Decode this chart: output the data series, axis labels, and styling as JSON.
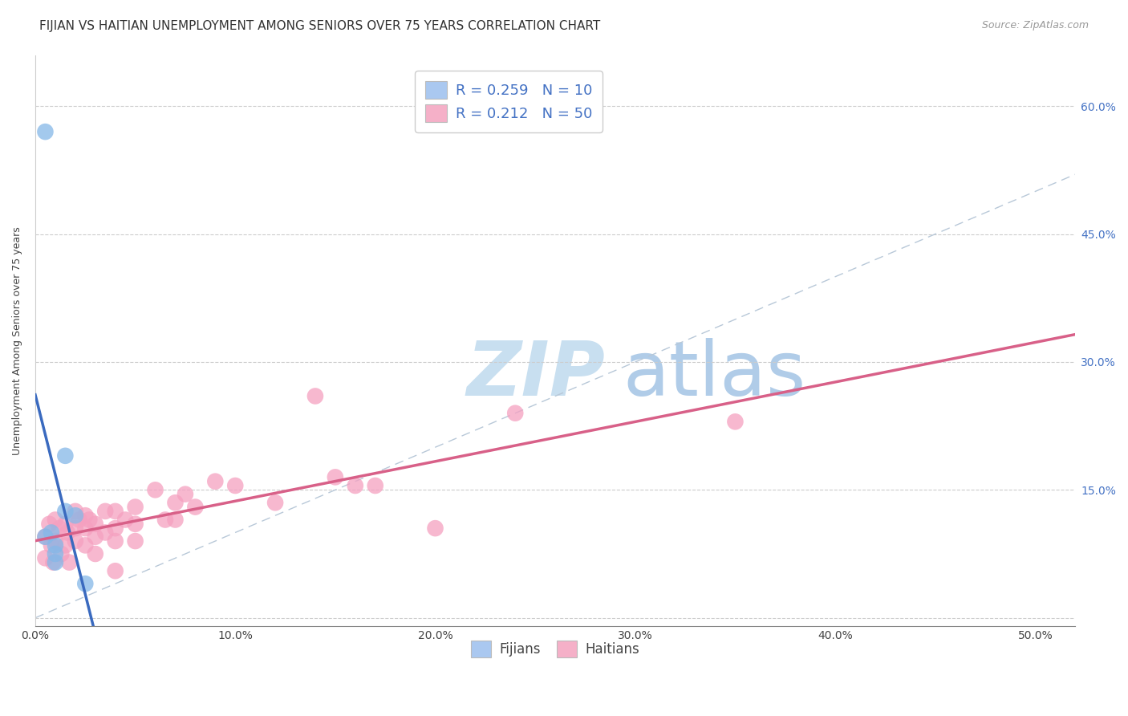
{
  "title": "FIJIAN VS HAITIAN UNEMPLOYMENT AMONG SENIORS OVER 75 YEARS CORRELATION CHART",
  "source": "Source: ZipAtlas.com",
  "ylabel": "Unemployment Among Seniors over 75 years",
  "x_tick_labels": [
    "0.0%",
    "10.0%",
    "20.0%",
    "30.0%",
    "40.0%",
    "50.0%"
  ],
  "x_tick_values": [
    0.0,
    0.1,
    0.2,
    0.3,
    0.4,
    0.5
  ],
  "y_tick_labels_right": [
    "",
    "15.0%",
    "30.0%",
    "45.0%",
    "60.0%"
  ],
  "y_tick_values": [
    0.0,
    0.15,
    0.3,
    0.45,
    0.6
  ],
  "xlim": [
    0.0,
    0.52
  ],
  "ylim": [
    -0.01,
    0.66
  ],
  "legend_label1": "R = 0.259   N = 10",
  "legend_label2": "R = 0.212   N = 50",
  "legend_color1": "#aac8f0",
  "legend_color2": "#f5b0c8",
  "fijian_color": "#85b8e8",
  "haitian_color": "#f5a0c0",
  "fijian_line_color": "#3a6abf",
  "haitian_line_color": "#d86088",
  "diagonal_color": "#b8c8d8",
  "watermark_zip_color": "#c8dff0",
  "watermark_atlas_color": "#b0cce8",
  "fijian_x": [
    0.005,
    0.008,
    0.01,
    0.01,
    0.01,
    0.015,
    0.015,
    0.02,
    0.025,
    0.005
  ],
  "fijian_y": [
    0.57,
    0.1,
    0.085,
    0.075,
    0.065,
    0.19,
    0.125,
    0.12,
    0.04,
    0.095
  ],
  "haitian_x": [
    0.005,
    0.005,
    0.007,
    0.008,
    0.009,
    0.01,
    0.01,
    0.012,
    0.013,
    0.015,
    0.015,
    0.016,
    0.017,
    0.02,
    0.02,
    0.02,
    0.022,
    0.025,
    0.025,
    0.025,
    0.027,
    0.03,
    0.03,
    0.03,
    0.035,
    0.035,
    0.04,
    0.04,
    0.04,
    0.04,
    0.045,
    0.05,
    0.05,
    0.05,
    0.06,
    0.065,
    0.07,
    0.07,
    0.075,
    0.08,
    0.09,
    0.1,
    0.12,
    0.14,
    0.15,
    0.16,
    0.17,
    0.2,
    0.24,
    0.35
  ],
  "haitian_y": [
    0.095,
    0.07,
    0.11,
    0.085,
    0.065,
    0.115,
    0.09,
    0.105,
    0.075,
    0.11,
    0.085,
    0.1,
    0.065,
    0.125,
    0.105,
    0.09,
    0.115,
    0.12,
    0.105,
    0.085,
    0.115,
    0.11,
    0.095,
    0.075,
    0.125,
    0.1,
    0.125,
    0.105,
    0.09,
    0.055,
    0.115,
    0.13,
    0.11,
    0.09,
    0.15,
    0.115,
    0.135,
    0.115,
    0.145,
    0.13,
    0.16,
    0.155,
    0.135,
    0.26,
    0.165,
    0.155,
    0.155,
    0.105,
    0.24,
    0.23
  ],
  "background_color": "#ffffff",
  "grid_color": "#cccccc",
  "title_fontsize": 11,
  "axis_label_fontsize": 9,
  "tick_fontsize": 10,
  "legend_fontsize": 13
}
